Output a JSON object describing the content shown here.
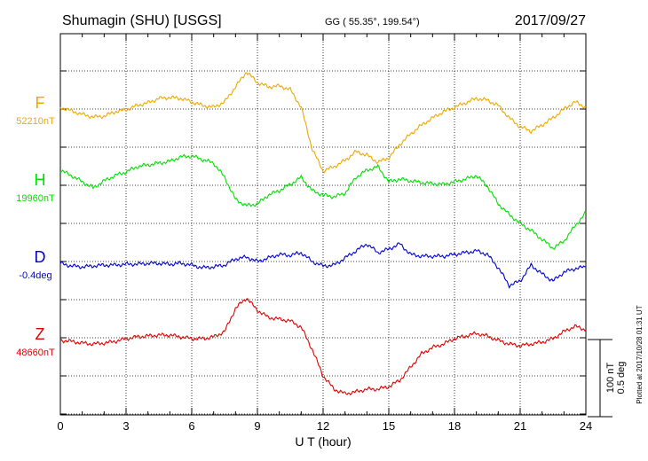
{
  "header": {
    "station": "Shumagin (SHU)  [USGS]",
    "coords": "GG ( 55.35°, 199.54°)",
    "date": "2017/09/27"
  },
  "footer": {
    "plotted": "Plotted at 2017/10/28 01:31  UT",
    "scale_nt": "100 nT",
    "scale_deg": "0.5 deg"
  },
  "chart_data": {
    "type": "line",
    "xlabel": "U T (hour)",
    "xlim": [
      0,
      24
    ],
    "xticks": [
      "0",
      "3",
      "6",
      "9",
      "12",
      "15",
      "18",
      "21",
      "24"
    ],
    "series": [
      {
        "name": "F",
        "baseline_label": "52210nT",
        "color": "#f0a800",
        "x": [
          0,
          0.5,
          1,
          1.5,
          2,
          2.5,
          3,
          3.5,
          4,
          4.5,
          5,
          5.5,
          6,
          6.5,
          7,
          7.5,
          8,
          8.5,
          9,
          9.5,
          10,
          10.5,
          11,
          11.5,
          12,
          12.5,
          13,
          13.5,
          14,
          14.5,
          15,
          15.5,
          16,
          16.5,
          17,
          17.5,
          18,
          18.5,
          19,
          19.5,
          20,
          20.5,
          21,
          21.5,
          22,
          22.5,
          23,
          23.5,
          24
        ],
        "y": [
          2,
          -2,
          -6,
          -9,
          -8,
          -3,
          -1,
          4,
          7,
          12,
          13,
          12,
          8,
          4,
          2,
          8,
          25,
          42,
          30,
          25,
          26,
          22,
          2,
          -45,
          -70,
          -65,
          -58,
          -48,
          -52,
          -60,
          -55,
          -40,
          -28,
          -18,
          -10,
          -3,
          2,
          7,
          12,
          10,
          4,
          -10,
          -20,
          -25,
          -18,
          -10,
          0,
          8,
          2
        ]
      },
      {
        "name": "H",
        "baseline_label": "19960nT",
        "color": "#00e000",
        "x": [
          0,
          0.5,
          1,
          1.5,
          2,
          2.5,
          3,
          3.5,
          4,
          4.5,
          5,
          5.5,
          6,
          6.5,
          7,
          7.5,
          8,
          8.5,
          9,
          9.5,
          10,
          10.5,
          11,
          11.5,
          12,
          12.5,
          13,
          13.5,
          14,
          14.5,
          15,
          15.5,
          16,
          16.5,
          17,
          17.5,
          18,
          18.5,
          19,
          19.5,
          20,
          20.5,
          21,
          21.5,
          22,
          22.5,
          23,
          23.5,
          24
        ],
        "y": [
          18,
          12,
          5,
          -2,
          6,
          12,
          16,
          22,
          24,
          26,
          28,
          33,
          34,
          30,
          26,
          10,
          -15,
          -22,
          -20,
          -10,
          -5,
          2,
          10,
          -5,
          -10,
          -12,
          -8,
          10,
          18,
          22,
          5,
          8,
          6,
          4,
          3,
          2,
          5,
          8,
          12,
          0,
          -20,
          -32,
          -42,
          -50,
          -60,
          -70,
          -62,
          -45,
          -30
        ]
      },
      {
        "name": "D",
        "baseline_label": "-0.4deg",
        "color": "#0000d0",
        "x": [
          0,
          0.5,
          1,
          1.5,
          2,
          2.5,
          3,
          3.5,
          4,
          4.5,
          5,
          5.5,
          6,
          6.5,
          7,
          7.5,
          8,
          8.5,
          9,
          9.5,
          10,
          10.5,
          11,
          11.5,
          12,
          12.5,
          13,
          13.5,
          14,
          14.5,
          15,
          15.5,
          16,
          16.5,
          17,
          17.5,
          18,
          18.5,
          19,
          19.5,
          20,
          20.5,
          21,
          21.5,
          22,
          22.5,
          23,
          23.5,
          24
        ],
        "y": [
          0,
          -3,
          -4,
          -3,
          -2,
          -2,
          -1,
          -1,
          0,
          0,
          -1,
          0,
          -2,
          -5,
          -4,
          -2,
          5,
          7,
          2,
          6,
          10,
          9,
          12,
          2,
          -3,
          -2,
          6,
          14,
          22,
          12,
          16,
          22,
          10,
          8,
          8,
          8,
          10,
          12,
          14,
          10,
          -5,
          -25,
          -20,
          -2,
          -12,
          -20,
          -10,
          -6,
          -4
        ]
      },
      {
        "name": "Z",
        "baseline_label": "48660nT",
        "color": "#e00000",
        "x": [
          0,
          0.5,
          1,
          1.5,
          2,
          2.5,
          3,
          3.5,
          4,
          4.5,
          5,
          5.5,
          6,
          6.5,
          7,
          7.5,
          8,
          8.5,
          9,
          9.5,
          10,
          10.5,
          11,
          11.5,
          12,
          12.5,
          13,
          13.5,
          14,
          14.5,
          15,
          15.5,
          16,
          16.5,
          17,
          17.5,
          18,
          18.5,
          19,
          19.5,
          20,
          20.5,
          21,
          21.5,
          22,
          22.5,
          23,
          23.5,
          24
        ],
        "y": [
          0,
          -1,
          -3,
          -4,
          -3,
          -1,
          2,
          4,
          5,
          6,
          6,
          4,
          2,
          2,
          4,
          10,
          36,
          48,
          34,
          26,
          24,
          22,
          15,
          -10,
          -40,
          -55,
          -60,
          -58,
          -55,
          -55,
          -52,
          -45,
          -30,
          -15,
          -8,
          -4,
          2,
          5,
          8,
          5,
          0,
          -4,
          -6,
          -4,
          -2,
          2,
          10,
          16,
          12
        ]
      }
    ]
  }
}
